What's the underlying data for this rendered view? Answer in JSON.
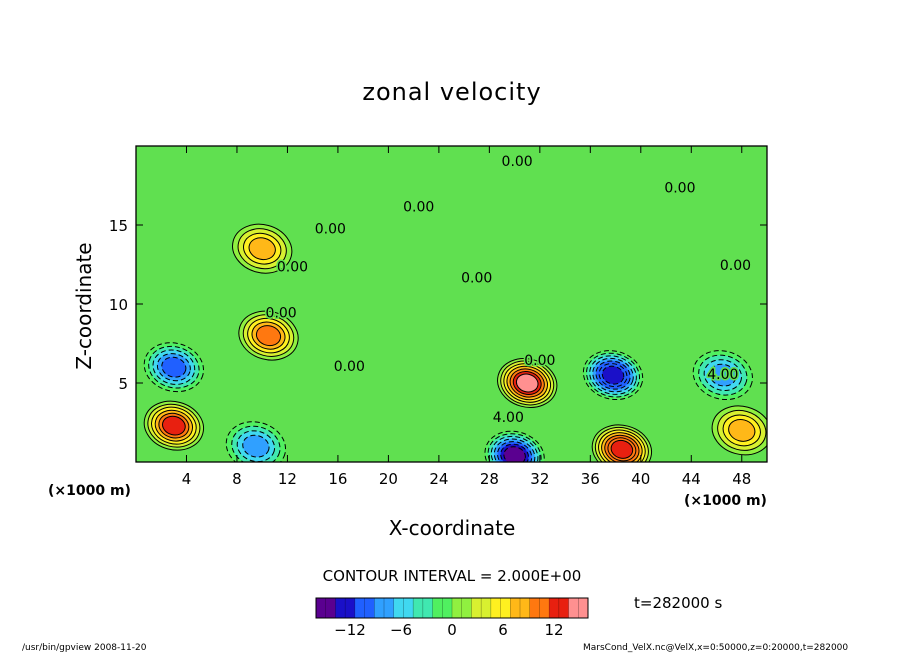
{
  "title": "zonal velocity",
  "footer_left": "/usr/bin/gpview  2008-11-20",
  "footer_right": "MarsCond_VelX.nc@VelX,x=0:50000,z=0:20000,t=282000",
  "chart_data": {
    "type": "heatmap",
    "title": "zonal velocity",
    "xlabel": "X-coordinate",
    "ylabel": "Z-coordinate",
    "x_unit_label": "(×1000 m)",
    "y_unit_label": "(×1000 m)",
    "xlim": [
      0,
      50
    ],
    "ylim": [
      0,
      20
    ],
    "x_ticks": [
      4,
      8,
      12,
      16,
      20,
      24,
      28,
      32,
      36,
      40,
      44,
      48
    ],
    "y_ticks": [
      5,
      10,
      15
    ],
    "contour_interval_label": "CONTOUR INTERVAL = 2.000E+00",
    "time_label": "t=282000 s",
    "colorbar": {
      "range": [
        -16,
        16
      ],
      "ticks": [
        -12,
        -6,
        0,
        6,
        12
      ],
      "colors": [
        "#5a0090",
        "#1a10c8",
        "#2060ff",
        "#30a0ff",
        "#40d8f0",
        "#40e8b0",
        "#50f060",
        "#90f040",
        "#d8f030",
        "#fff020",
        "#ffb818",
        "#ff7810",
        "#e82010",
        "#ff9090"
      ]
    },
    "contour_labels": [
      {
        "text": "0.00",
        "x": 30.2,
        "z": 19.0
      },
      {
        "text": "0.00",
        "x": 43.1,
        "z": 17.3
      },
      {
        "text": "0.00",
        "x": 22.4,
        "z": 16.1
      },
      {
        "text": "0.00",
        "x": 15.4,
        "z": 14.7
      },
      {
        "text": "0.00",
        "x": 12.4,
        "z": 12.3
      },
      {
        "text": "0.00",
        "x": 47.5,
        "z": 12.4
      },
      {
        "text": "0.00",
        "x": 27.0,
        "z": 11.6
      },
      {
        "text": "0.00",
        "x": 11.5,
        "z": 9.4
      },
      {
        "text": "0.00",
        "x": 16.9,
        "z": 6.0
      },
      {
        "text": "0.00",
        "x": 32.0,
        "z": 6.4
      },
      {
        "text": "4.00",
        "x": 46.5,
        "z": 5.5
      },
      {
        "text": "4.00",
        "x": 29.5,
        "z": 2.8
      }
    ],
    "extrema": [
      {
        "x": 3.0,
        "z": 6.0,
        "value": -10
      },
      {
        "x": 9.5,
        "z": 1.0,
        "value": -8
      },
      {
        "x": 3.0,
        "z": 2.3,
        "value": 12
      },
      {
        "x": 10.5,
        "z": 8.0,
        "value": 10
      },
      {
        "x": 31.0,
        "z": 5.0,
        "value": 14
      },
      {
        "x": 37.8,
        "z": 5.5,
        "value": -13
      },
      {
        "x": 38.5,
        "z": 0.8,
        "value": 13
      },
      {
        "x": 30.0,
        "z": 0.4,
        "value": -14
      },
      {
        "x": 46.5,
        "z": 5.5,
        "value": -8
      },
      {
        "x": 48.0,
        "z": 2.0,
        "value": 8
      },
      {
        "x": 10.0,
        "z": 13.5,
        "value": 8
      }
    ]
  }
}
